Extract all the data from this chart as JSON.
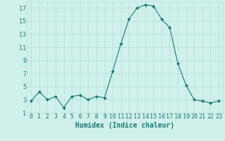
{
  "x": [
    0,
    1,
    2,
    3,
    4,
    5,
    6,
    7,
    8,
    9,
    10,
    11,
    12,
    13,
    14,
    15,
    16,
    17,
    18,
    19,
    20,
    21,
    22,
    23
  ],
  "y": [
    2.8,
    4.2,
    3.0,
    3.5,
    1.8,
    3.5,
    3.7,
    3.0,
    3.5,
    3.3,
    7.3,
    11.5,
    15.3,
    17.0,
    17.5,
    17.3,
    15.3,
    14.0,
    8.5,
    5.2,
    3.0,
    2.8,
    2.5,
    2.8
  ],
  "xlabel": "Humidex (Indice chaleur)",
  "ylim": [
    1,
    18
  ],
  "xlim": [
    -0.5,
    23.5
  ],
  "yticks": [
    1,
    3,
    5,
    7,
    9,
    11,
    13,
    15,
    17
  ],
  "xticks": [
    0,
    1,
    2,
    3,
    4,
    5,
    6,
    7,
    8,
    9,
    10,
    11,
    12,
    13,
    14,
    15,
    16,
    17,
    18,
    19,
    20,
    21,
    22,
    23
  ],
  "xtick_labels": [
    "0",
    "1",
    "2",
    "3",
    "4",
    "5",
    "6",
    "7",
    "8",
    "9",
    "10",
    "11",
    "12",
    "13",
    "14",
    "15",
    "16",
    "17",
    "18",
    "19",
    "20",
    "21",
    "22",
    "23"
  ],
  "line_color": "#1a7a6e",
  "marker": "D",
  "marker_size": 2.0,
  "bg_color": "#cff0eb",
  "grid_color_major": "#b8ddd8",
  "grid_color_minor": "#cce8e3",
  "tick_color": "#1a7a6e",
  "label_color": "#1a7a6e",
  "xlabel_fontsize": 7,
  "tick_fontsize": 6,
  "line_width": 0.8
}
